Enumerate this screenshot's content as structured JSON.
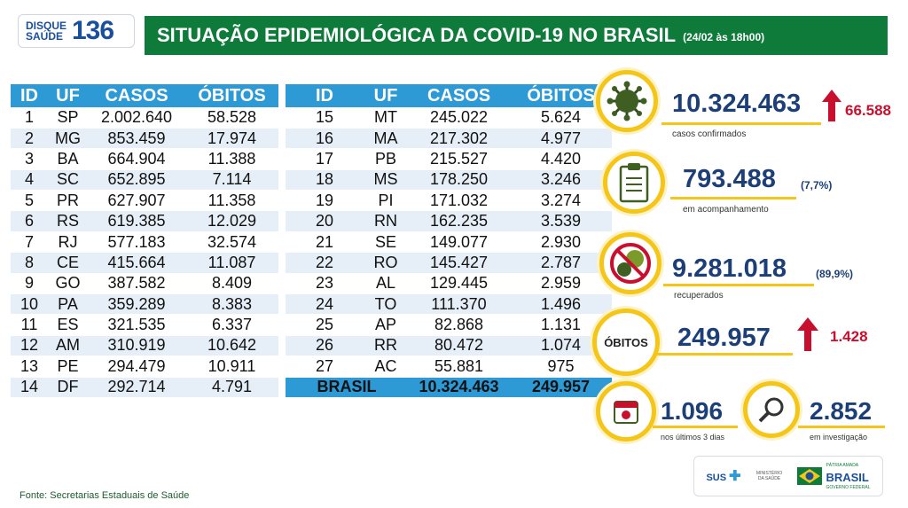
{
  "header": {
    "disque_label": "DISQUE SAÚDE",
    "disque_number": "136",
    "title": "SITUAÇÃO EPIDEMIOLÓGICA DA COVID-19 NO BRASIL",
    "date": "(24/02 às 18h00)"
  },
  "table": {
    "columns": [
      "ID",
      "UF",
      "CASOS",
      "ÓBITOS"
    ],
    "left_rows": [
      [
        "1",
        "SP",
        "2.002.640",
        "58.528"
      ],
      [
        "2",
        "MG",
        "853.459",
        "17.974"
      ],
      [
        "3",
        "BA",
        "664.904",
        "11.388"
      ],
      [
        "4",
        "SC",
        "652.895",
        "7.114"
      ],
      [
        "5",
        "PR",
        "627.907",
        "11.358"
      ],
      [
        "6",
        "RS",
        "619.385",
        "12.029"
      ],
      [
        "7",
        "RJ",
        "577.183",
        "32.574"
      ],
      [
        "8",
        "CE",
        "415.664",
        "11.087"
      ],
      [
        "9",
        "GO",
        "387.582",
        "8.409"
      ],
      [
        "10",
        "PA",
        "359.289",
        "8.383"
      ],
      [
        "11",
        "ES",
        "321.535",
        "6.337"
      ],
      [
        "12",
        "AM",
        "310.919",
        "10.642"
      ],
      [
        "13",
        "PE",
        "294.479",
        "10.911"
      ],
      [
        "14",
        "DF",
        "292.714",
        "4.791"
      ]
    ],
    "right_rows": [
      [
        "15",
        "MT",
        "245.022",
        "5.624"
      ],
      [
        "16",
        "MA",
        "217.302",
        "4.977"
      ],
      [
        "17",
        "PB",
        "215.527",
        "4.420"
      ],
      [
        "18",
        "MS",
        "178.250",
        "3.246"
      ],
      [
        "19",
        "PI",
        "171.032",
        "3.274"
      ],
      [
        "20",
        "RN",
        "162.235",
        "3.539"
      ],
      [
        "21",
        "SE",
        "149.077",
        "2.930"
      ],
      [
        "22",
        "RO",
        "145.427",
        "2.787"
      ],
      [
        "23",
        "AL",
        "129.445",
        "2.959"
      ],
      [
        "24",
        "TO",
        "111.370",
        "1.496"
      ],
      [
        "25",
        "AP",
        "82.868",
        "1.131"
      ],
      [
        "26",
        "RR",
        "80.472",
        "1.074"
      ],
      [
        "27",
        "AC",
        "55.881",
        "975"
      ]
    ],
    "total": {
      "label": "BRASIL",
      "casos": "10.324.463",
      "obitos": "249.957"
    }
  },
  "stats": {
    "confirmed": {
      "value": "10.324.463",
      "increase": "66.588",
      "label": "casos confirmados"
    },
    "monitoring": {
      "value": "793.488",
      "pct": "(7,7%)",
      "label": "em acompanhamento"
    },
    "recovered": {
      "value": "9.281.018",
      "pct": "(89,9%)",
      "label": "recuperados"
    },
    "deaths": {
      "badge": "ÓBITOS",
      "value": "249.957",
      "increase": "1.428"
    },
    "last3days": {
      "value": "1.096",
      "label": "nos últimos 3 dias"
    },
    "investigation": {
      "value": "2.852",
      "label": "em investigação"
    }
  },
  "footer": {
    "source": "Fonte: Secretarias Estaduais de Saúde"
  },
  "logos": {
    "sus": "SUS",
    "ministerio": "MINISTÉRIO DA SAÚDE",
    "patria": "PÁTRIA AMADA",
    "brasil": "BRASIL",
    "governo": "GOVERNO FEDERAL"
  },
  "colors": {
    "green": "#0e7b3a",
    "blue": "#2d9ad6",
    "navy": "#1d3f78",
    "yellow": "#f5c518",
    "red": "#c8102e"
  },
  "chart_data": {
    "type": "table",
    "columns": [
      "ID",
      "UF",
      "CASOS",
      "ÓBITOS"
    ],
    "rows": [
      [
        1,
        "SP",
        2002640,
        58528
      ],
      [
        2,
        "MG",
        853459,
        17974
      ],
      [
        3,
        "BA",
        664904,
        11388
      ],
      [
        4,
        "SC",
        652895,
        7114
      ],
      [
        5,
        "PR",
        627907,
        11358
      ],
      [
        6,
        "RS",
        619385,
        12029
      ],
      [
        7,
        "RJ",
        577183,
        32574
      ],
      [
        8,
        "CE",
        415664,
        11087
      ],
      [
        9,
        "GO",
        387582,
        8409
      ],
      [
        10,
        "PA",
        359289,
        8383
      ],
      [
        11,
        "ES",
        321535,
        6337
      ],
      [
        12,
        "AM",
        310919,
        10642
      ],
      [
        13,
        "PE",
        294479,
        10911
      ],
      [
        14,
        "DF",
        292714,
        4791
      ],
      [
        15,
        "MT",
        245022,
        5624
      ],
      [
        16,
        "MA",
        217302,
        4977
      ],
      [
        17,
        "PB",
        215527,
        4420
      ],
      [
        18,
        "MS",
        178250,
        3246
      ],
      [
        19,
        "PI",
        171032,
        3274
      ],
      [
        20,
        "RN",
        162235,
        3539
      ],
      [
        21,
        "SE",
        149077,
        2930
      ],
      [
        22,
        "RO",
        145427,
        2787
      ],
      [
        23,
        "AL",
        129445,
        2959
      ],
      [
        24,
        "TO",
        111370,
        1496
      ],
      [
        25,
        "AP",
        82868,
        1131
      ],
      [
        26,
        "RR",
        80472,
        1074
      ],
      [
        27,
        "AC",
        55881,
        975
      ]
    ],
    "total": [
      "BRASIL",
      10324463,
      249957
    ]
  }
}
